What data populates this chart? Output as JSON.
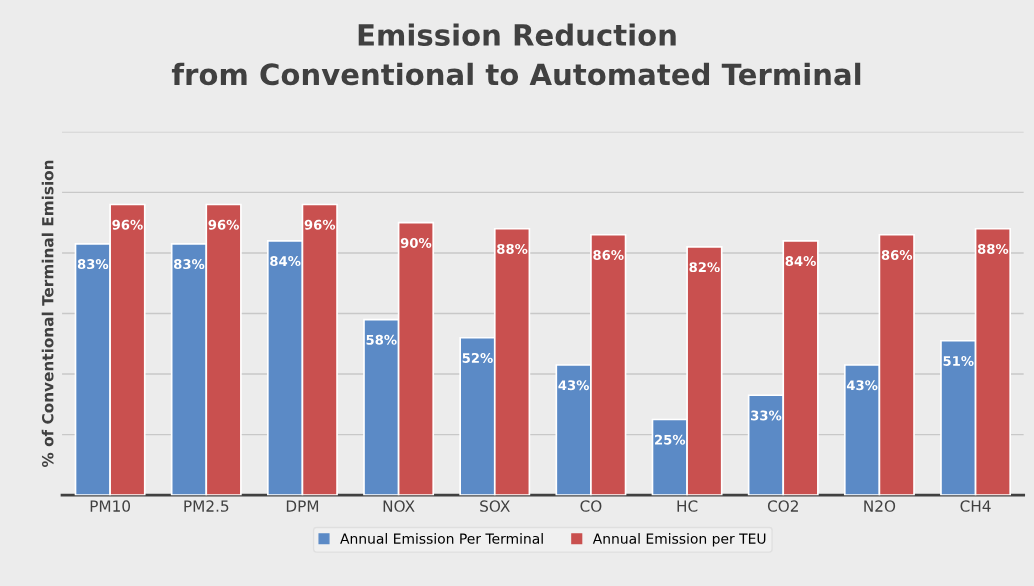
{
  "chart_data": {
    "type": "bar",
    "title": "Emission Reduction\nfrom Conventional to Automated Terminal",
    "ylabel": "% of Conventional Terminal Emision",
    "categories": [
      "PM10",
      "PM2.5",
      "DPM",
      "NOX",
      "SOX",
      "CO",
      "HC",
      "CO2",
      "N2O",
      "CH4"
    ],
    "series": [
      {
        "name": "Annual Emission Per Terminal",
        "color": "#5b8ac6",
        "values": [
          83,
          83,
          84,
          58,
          52,
          43,
          25,
          33,
          43,
          51
        ],
        "value_labels": [
          "83%",
          "83%",
          "84%",
          "58%",
          "52%",
          "43%",
          "25%",
          "33%",
          "43%",
          "51%"
        ]
      },
      {
        "name": "Annual Emission per TEU",
        "color": "#c9504f",
        "values": [
          96,
          96,
          96,
          90,
          88,
          86,
          82,
          84,
          86,
          88
        ],
        "value_labels": [
          "96%",
          "96%",
          "96%",
          "90%",
          "88%",
          "86%",
          "82%",
          "84%",
          "86%",
          "88%"
        ]
      }
    ],
    "ylim": [
      0,
      120
    ],
    "yticks": [
      {
        "value": 0,
        "label": null
      },
      {
        "value": 20,
        "label": null
      },
      {
        "value": 40,
        "label": null
      },
      {
        "value": 60,
        "label": null
      },
      {
        "value": 80,
        "label": null
      },
      {
        "value": 100,
        "label": null
      },
      {
        "value": 120,
        "label": null
      }
    ],
    "grid": "y",
    "legend": "bottom",
    "tick_labels": "x"
  }
}
